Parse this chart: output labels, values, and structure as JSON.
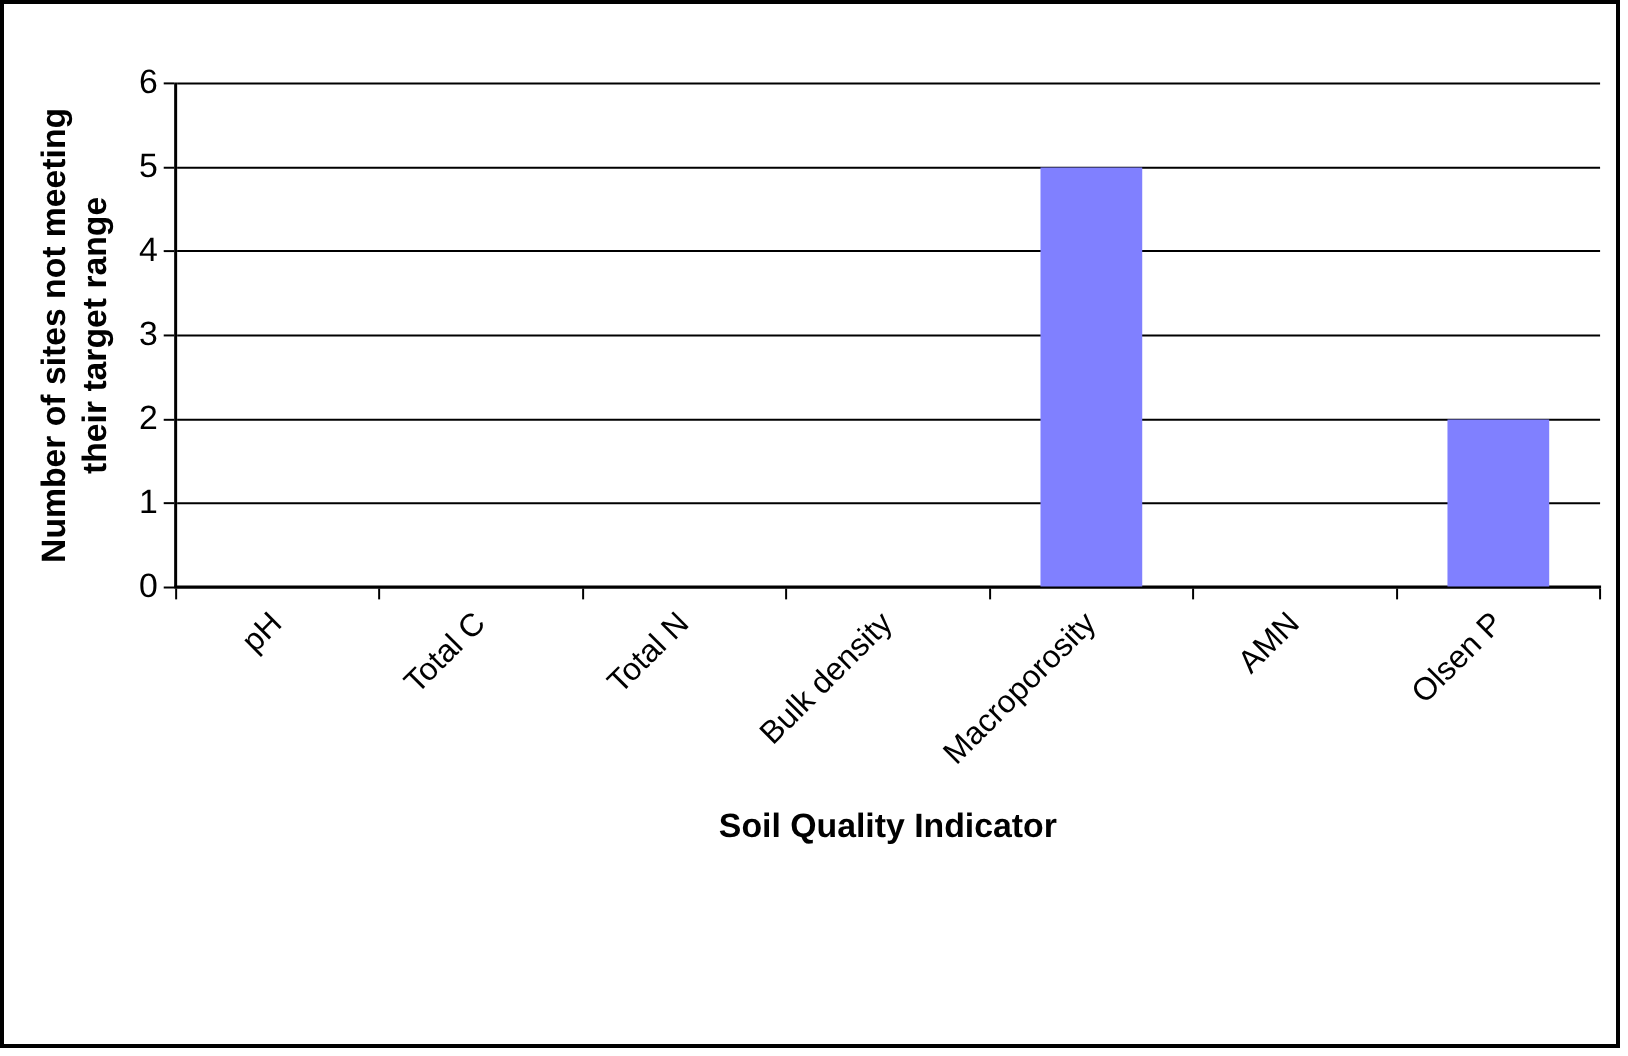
{
  "chart_data": {
    "type": "bar",
    "xlabel": "Soil Quality Indicator",
    "ylabel": "Number of sites not meeting their target range",
    "categories": [
      "pH",
      "Total C",
      "Total N",
      "Bulk density",
      "Macroporosity",
      "AMN",
      "Olsen P"
    ],
    "values": [
      0,
      0,
      0,
      0,
      5,
      0,
      2
    ],
    "color": "#8080ff",
    "ylim": [
      0,
      6
    ],
    "yticks": [
      0,
      1,
      2,
      3,
      4,
      5,
      6
    ],
    "grid": "y",
    "legend": false
  }
}
